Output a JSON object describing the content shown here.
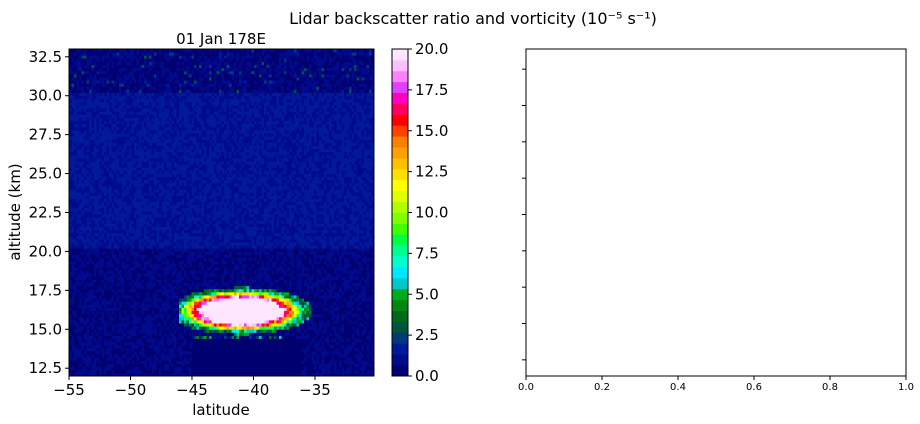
{
  "figure": {
    "suptitle": "Lidar backscatter ratio and vorticity (10⁻⁵ s⁻¹)"
  },
  "chart_data": [
    {
      "type": "heatmap",
      "title": "01 Jan   178E",
      "xlabel": "latitude",
      "ylabel": "altitude (km)",
      "xlim": [
        -55,
        -30.2
      ],
      "ylim": [
        12,
        33
      ],
      "xticks": [
        -55,
        -50,
        -45,
        -40,
        -35
      ],
      "xtick_labels": [
        "−55",
        "−50",
        "−45",
        "−40",
        "−35"
      ],
      "yticks": [
        12.5,
        15.0,
        17.5,
        20.0,
        22.5,
        25.0,
        27.5,
        30.0,
        32.5
      ],
      "ytick_labels": [
        "12.5",
        "15.0",
        "17.5",
        "20.0",
        "22.5",
        "25.0",
        "27.5",
        "30.0",
        "32.5"
      ],
      "description_of_field": {
        "background_range": [
          0,
          2
        ],
        "layer_boundaries_km": [
          20.2,
          30.1
        ],
        "cloud_feature": {
          "lat_range": [
            -46,
            -35
          ],
          "alt_range": [
            14.5,
            17.5
          ],
          "peak_value": 20
        }
      },
      "colorbar": {
        "vmin": 0,
        "vmax": 20,
        "ticks": [
          0,
          2.5,
          5,
          7.5,
          10,
          12.5,
          15,
          17.5,
          20
        ],
        "tick_labels": [
          "0.0",
          "2.5",
          "5.0",
          "7.5",
          "10.0",
          "12.5",
          "15.0",
          "17.5",
          "20.0"
        ],
        "levels": 40,
        "colors": [
          "#000070",
          "#000a8c",
          "#001a9a",
          "#003a7a",
          "#00553a",
          "#006a1c",
          "#008810",
          "#00aa20",
          "#00c8c8",
          "#00e6ff",
          "#00ffd0",
          "#00ff90",
          "#00ff40",
          "#40ff00",
          "#80ff00",
          "#b0ff00",
          "#e0ff00",
          "#ffff00",
          "#ffe000",
          "#ffc000",
          "#ffa000",
          "#ff8000",
          "#ff4000",
          "#ff0000",
          "#ff0060",
          "#ff00c0",
          "#e040ff",
          "#ff80ff",
          "#ffc0ff",
          "#ffe6ff"
        ]
      }
    },
    {
      "type": "scatter",
      "title": "",
      "xlabel": "",
      "ylabel": "",
      "xlim": [
        0,
        1
      ],
      "ylim": [
        0,
        1
      ],
      "xticks": [
        0,
        0.2,
        0.4,
        0.6,
        0.8,
        1.0
      ],
      "xtick_labels": [
        "0.0",
        "0.2",
        "0.4",
        "0.6",
        "0.8",
        "1.0"
      ],
      "ytick_count": 9,
      "ytick_labels": [],
      "series": []
    }
  ]
}
